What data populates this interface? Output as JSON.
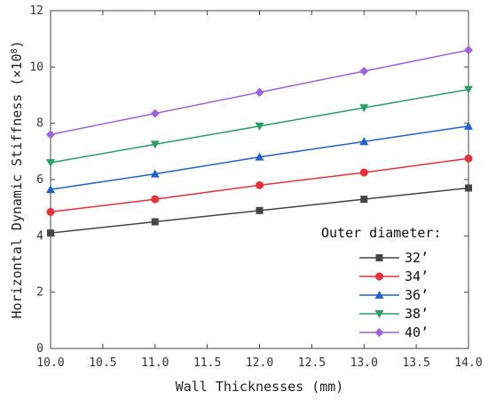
{
  "chart_data": {
    "type": "line",
    "xlabel": "Wall Thicknesses (mm)",
    "ylabel": "Horizontal Dynamic Stiffness (×10",
    "ylabel_exponent": "8",
    "ylabel_close": ")",
    "xlim": [
      10.0,
      14.0
    ],
    "ylim": [
      0,
      12
    ],
    "x_ticks": [
      "10.0",
      "10.5",
      "11.0",
      "11.5",
      "12.0",
      "12.5",
      "13.0",
      "13.5",
      "14.0"
    ],
    "y_ticks": [
      "0",
      "2",
      "4",
      "6",
      "8",
      "10",
      "12"
    ],
    "x": [
      10,
      11,
      12,
      13,
      14
    ],
    "legend_title": "Outer diameter:",
    "legend_position": "bottom-right",
    "grid": false,
    "series": [
      {
        "name": "32’",
        "color": "#454545",
        "marker": "square",
        "values": [
          4.1,
          4.5,
          4.9,
          5.3,
          5.7
        ]
      },
      {
        "name": "34’",
        "color": "#e8303a",
        "marker": "circle",
        "values": [
          4.85,
          5.3,
          5.8,
          6.25,
          6.75
        ]
      },
      {
        "name": "36’",
        "color": "#2060d0",
        "marker": "triangle-up",
        "values": [
          5.65,
          6.2,
          6.8,
          7.35,
          7.9
        ]
      },
      {
        "name": "38’",
        "color": "#2aa060",
        "marker": "triangle-down",
        "values": [
          6.6,
          7.25,
          7.9,
          8.55,
          9.2
        ]
      },
      {
        "name": "40’",
        "color": "#a060e0",
        "marker": "diamond",
        "values": [
          7.6,
          8.35,
          9.1,
          9.85,
          10.6
        ]
      }
    ]
  }
}
